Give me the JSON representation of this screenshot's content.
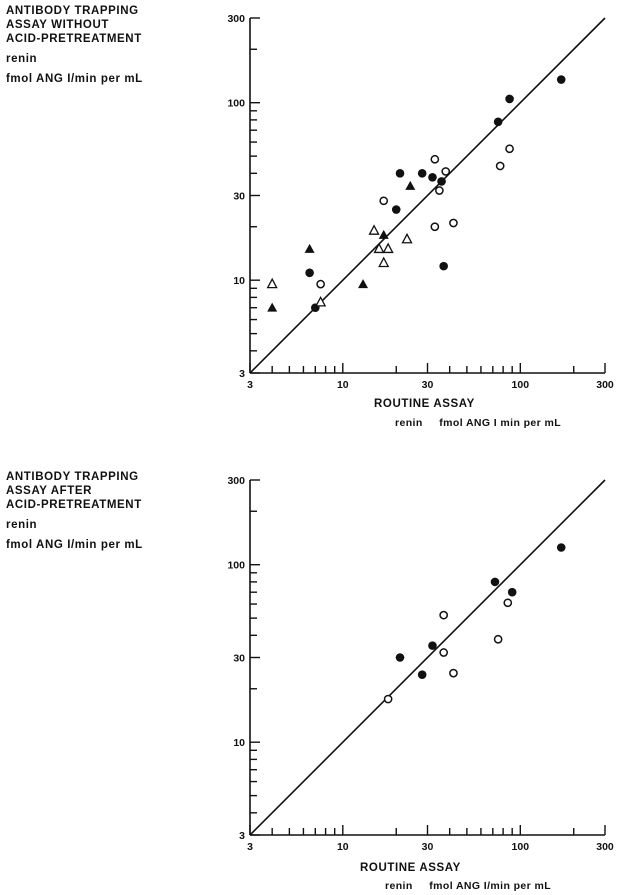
{
  "chart_data": [
    {
      "type": "scatter",
      "scale": "log-log",
      "ylabel_lines": [
        "ANTIBODY TRAPPING",
        "ASSAY WITHOUT",
        "ACID-PRETREATMENT"
      ],
      "ylabel_quantity": "renin",
      "ylabel_units": "fmol ANG I/min per mL",
      "xlabel": "ROUTINE ASSAY",
      "xlabel_units": "renin     fmol ANG I min per mL",
      "xlim": [
        3,
        300
      ],
      "ylim": [
        3,
        300
      ],
      "xticks": [
        "3",
        "10",
        "30",
        "100",
        "300"
      ],
      "yticks": [
        "3",
        "10",
        "30",
        "100",
        "300"
      ],
      "identity_line": true,
      "series": [
        {
          "marker": "filled-circle",
          "points": [
            [
              6.5,
              11
            ],
            [
              7,
              7
            ],
            [
              20,
              25
            ],
            [
              21,
              40
            ],
            [
              28,
              40
            ],
            [
              32,
              38
            ],
            [
              36,
              36
            ],
            [
              37,
              12
            ],
            [
              75,
              78
            ],
            [
              87,
              105
            ],
            [
              170,
              135
            ]
          ]
        },
        {
          "marker": "open-circle",
          "points": [
            [
              7.5,
              9.5
            ],
            [
              17,
              28
            ],
            [
              33,
              20
            ],
            [
              33,
              48
            ],
            [
              35,
              32
            ],
            [
              38,
              41
            ],
            [
              42,
              21
            ],
            [
              77,
              44
            ],
            [
              87,
              55
            ]
          ]
        },
        {
          "marker": "filled-triangle",
          "points": [
            [
              4,
              7
            ],
            [
              6.5,
              15
            ],
            [
              13,
              9.5
            ],
            [
              17,
              18
            ],
            [
              24,
              34
            ]
          ]
        },
        {
          "marker": "open-triangle",
          "points": [
            [
              4,
              9.5
            ],
            [
              7.5,
              7.5
            ],
            [
              15,
              19
            ],
            [
              16,
              15
            ],
            [
              17,
              12.5
            ],
            [
              18,
              15
            ],
            [
              23,
              17
            ]
          ]
        }
      ]
    },
    {
      "type": "scatter",
      "scale": "log-log",
      "ylabel_lines": [
        "ANTIBODY TRAPPING",
        "ASSAY AFTER",
        "ACID-PRETREATMENT"
      ],
      "ylabel_quantity": "renin",
      "ylabel_units": "fmol ANG I/min per mL",
      "xlabel": "ROUTINE ASSAY",
      "xlabel_units": "renin     fmol ANG I/min per mL",
      "xlim": [
        3,
        300
      ],
      "ylim": [
        3,
        300
      ],
      "xticks": [
        "3",
        "10",
        "30",
        "100",
        "300"
      ],
      "yticks": [
        "3",
        "10",
        "30",
        "100",
        "300"
      ],
      "identity_line": true,
      "series": [
        {
          "marker": "filled-circle",
          "points": [
            [
              21,
              30
            ],
            [
              28,
              24
            ],
            [
              32,
              35
            ],
            [
              72,
              80
            ],
            [
              90,
              70
            ],
            [
              170,
              125
            ]
          ]
        },
        {
          "marker": "open-circle",
          "points": [
            [
              18,
              17.5
            ],
            [
              37,
              52
            ],
            [
              37,
              32
            ],
            [
              42,
              24.5
            ],
            [
              75,
              38
            ],
            [
              85,
              61
            ]
          ]
        }
      ]
    }
  ]
}
